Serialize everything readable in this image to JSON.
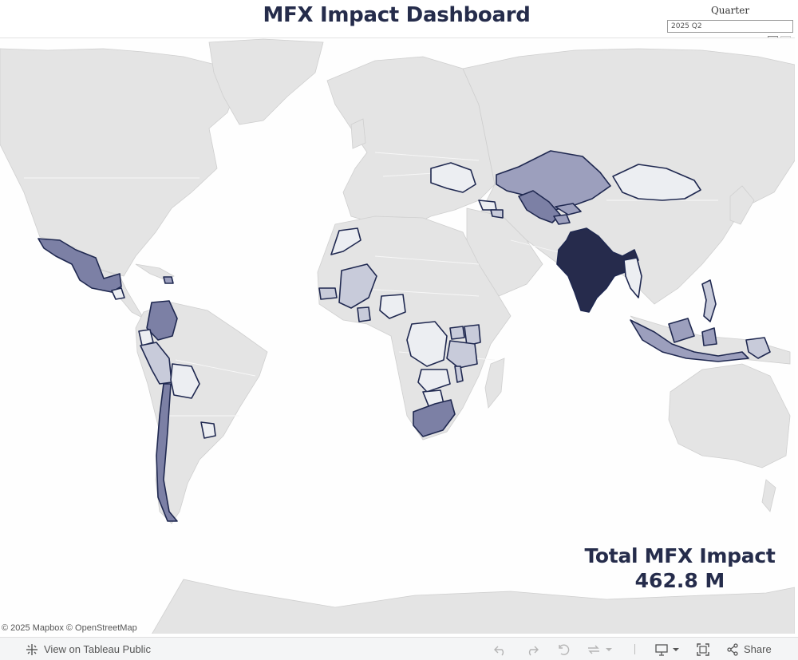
{
  "header": {
    "title": "MFX Impact Dashboard"
  },
  "filter": {
    "label": "Quarter",
    "value": "2025 Q2",
    "controls": [
      "reset-icon",
      "chevron-left-icon",
      "chevron-right-icon"
    ]
  },
  "map": {
    "attribution": "© 2025 Mapbox  © OpenStreetMap",
    "color_scale": {
      "lightest": "#eceef2",
      "light": "#c8cbda",
      "medium": "#9c9fbd",
      "dark": "#7c80a5",
      "darkest": "#262b4c"
    },
    "highlighted_countries": [
      {
        "name": "India",
        "shade": "darkest"
      },
      {
        "name": "Kazakhstan",
        "shade": "medium"
      },
      {
        "name": "Uzbekistan",
        "shade": "dark"
      },
      {
        "name": "Kyrgyzstan",
        "shade": "medium"
      },
      {
        "name": "Tajikistan",
        "shade": "medium"
      },
      {
        "name": "Mongolia",
        "shade": "lightest"
      },
      {
        "name": "Ukraine",
        "shade": "lightest"
      },
      {
        "name": "Georgia",
        "shade": "lightest"
      },
      {
        "name": "Armenia",
        "shade": "light"
      },
      {
        "name": "Mexico",
        "shade": "dark"
      },
      {
        "name": "Guatemala",
        "shade": "lightest"
      },
      {
        "name": "Dominican Republic",
        "shade": "medium"
      },
      {
        "name": "Colombia",
        "shade": "dark"
      },
      {
        "name": "Ecuador",
        "shade": "lightest"
      },
      {
        "name": "Peru",
        "shade": "light"
      },
      {
        "name": "Bolivia",
        "shade": "lightest"
      },
      {
        "name": "Paraguay",
        "shade": "lightest"
      },
      {
        "name": "Chile",
        "shade": "dark"
      },
      {
        "name": "Morocco",
        "shade": "lightest"
      },
      {
        "name": "Senegal",
        "shade": "light"
      },
      {
        "name": "Mali",
        "shade": "light"
      },
      {
        "name": "Ghana",
        "shade": "light"
      },
      {
        "name": "Nigeria",
        "shade": "lightest"
      },
      {
        "name": "DR Congo",
        "shade": "lightest"
      },
      {
        "name": "Uganda",
        "shade": "light"
      },
      {
        "name": "Kenya",
        "shade": "light"
      },
      {
        "name": "Tanzania",
        "shade": "light"
      },
      {
        "name": "Zambia",
        "shade": "lightest"
      },
      {
        "name": "Malawi",
        "shade": "light"
      },
      {
        "name": "Botswana",
        "shade": "lightest"
      },
      {
        "name": "South Africa",
        "shade": "dark"
      },
      {
        "name": "Myanmar",
        "shade": "lightest"
      },
      {
        "name": "Philippines",
        "shade": "light"
      },
      {
        "name": "Indonesia",
        "shade": "medium"
      },
      {
        "name": "Papua New Guinea",
        "shade": "light"
      }
    ]
  },
  "kpi": {
    "label": "Total MFX Impact",
    "value": "462.8 M"
  },
  "toolbar": {
    "view_on_public": "View on Tableau Public",
    "share": "Share",
    "icons": [
      "tableau-logo-icon",
      "undo-icon",
      "redo-icon",
      "revert-icon",
      "refresh-icon",
      "download-icon",
      "fullscreen-icon",
      "share-icon"
    ]
  }
}
